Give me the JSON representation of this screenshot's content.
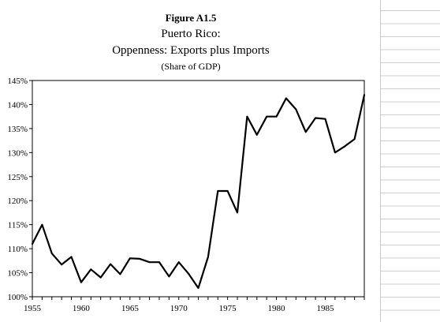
{
  "chart_data": {
    "type": "line",
    "title": "Figure A1.5",
    "subtitle": "Puerto Rico:",
    "subtitle2": "Oppenness: Exports plus Imports",
    "subtitle3": "(Share of GDP)",
    "xlabel": "",
    "ylabel": "",
    "xlim": [
      1955,
      1989
    ],
    "ylim": [
      100,
      145
    ],
    "x_ticks": [
      1955,
      1960,
      1965,
      1970,
      1975,
      1980,
      1985
    ],
    "y_ticks": [
      100,
      105,
      110,
      115,
      120,
      125,
      130,
      135,
      140,
      145
    ],
    "y_tick_labels": [
      "100%",
      "105%",
      "110%",
      "115%",
      "120%",
      "125%",
      "130%",
      "135%",
      "140%",
      "145%"
    ],
    "x_tick_labels": [
      "1955",
      "1960",
      "1965",
      "1970",
      "1975",
      "1980",
      "1985"
    ],
    "grid": false,
    "legend": "none",
    "series": [
      {
        "color": "#000000",
        "x": [
          1955,
          1956,
          1957,
          1958,
          1959,
          1960,
          1961,
          1962,
          1963,
          1964,
          1965,
          1966,
          1967,
          1968,
          1969,
          1970,
          1971,
          1972,
          1973,
          1974,
          1975,
          1976,
          1977,
          1978,
          1979,
          1980,
          1981,
          1982,
          1983,
          1984,
          1985,
          1986,
          1987,
          1988,
          1989
        ],
        "values": [
          111.0,
          115.0,
          109.0,
          106.7,
          108.3,
          103.0,
          105.7,
          104.0,
          106.8,
          104.7,
          108.0,
          107.9,
          107.2,
          107.2,
          104.2,
          107.2,
          104.8,
          101.8,
          108.3,
          122.0,
          122.0,
          117.5,
          137.5,
          133.7,
          137.5,
          137.5,
          141.3,
          139.0,
          134.3,
          137.2,
          137.0,
          130.0,
          131.3,
          132.8,
          142.0
        ]
      }
    ]
  }
}
